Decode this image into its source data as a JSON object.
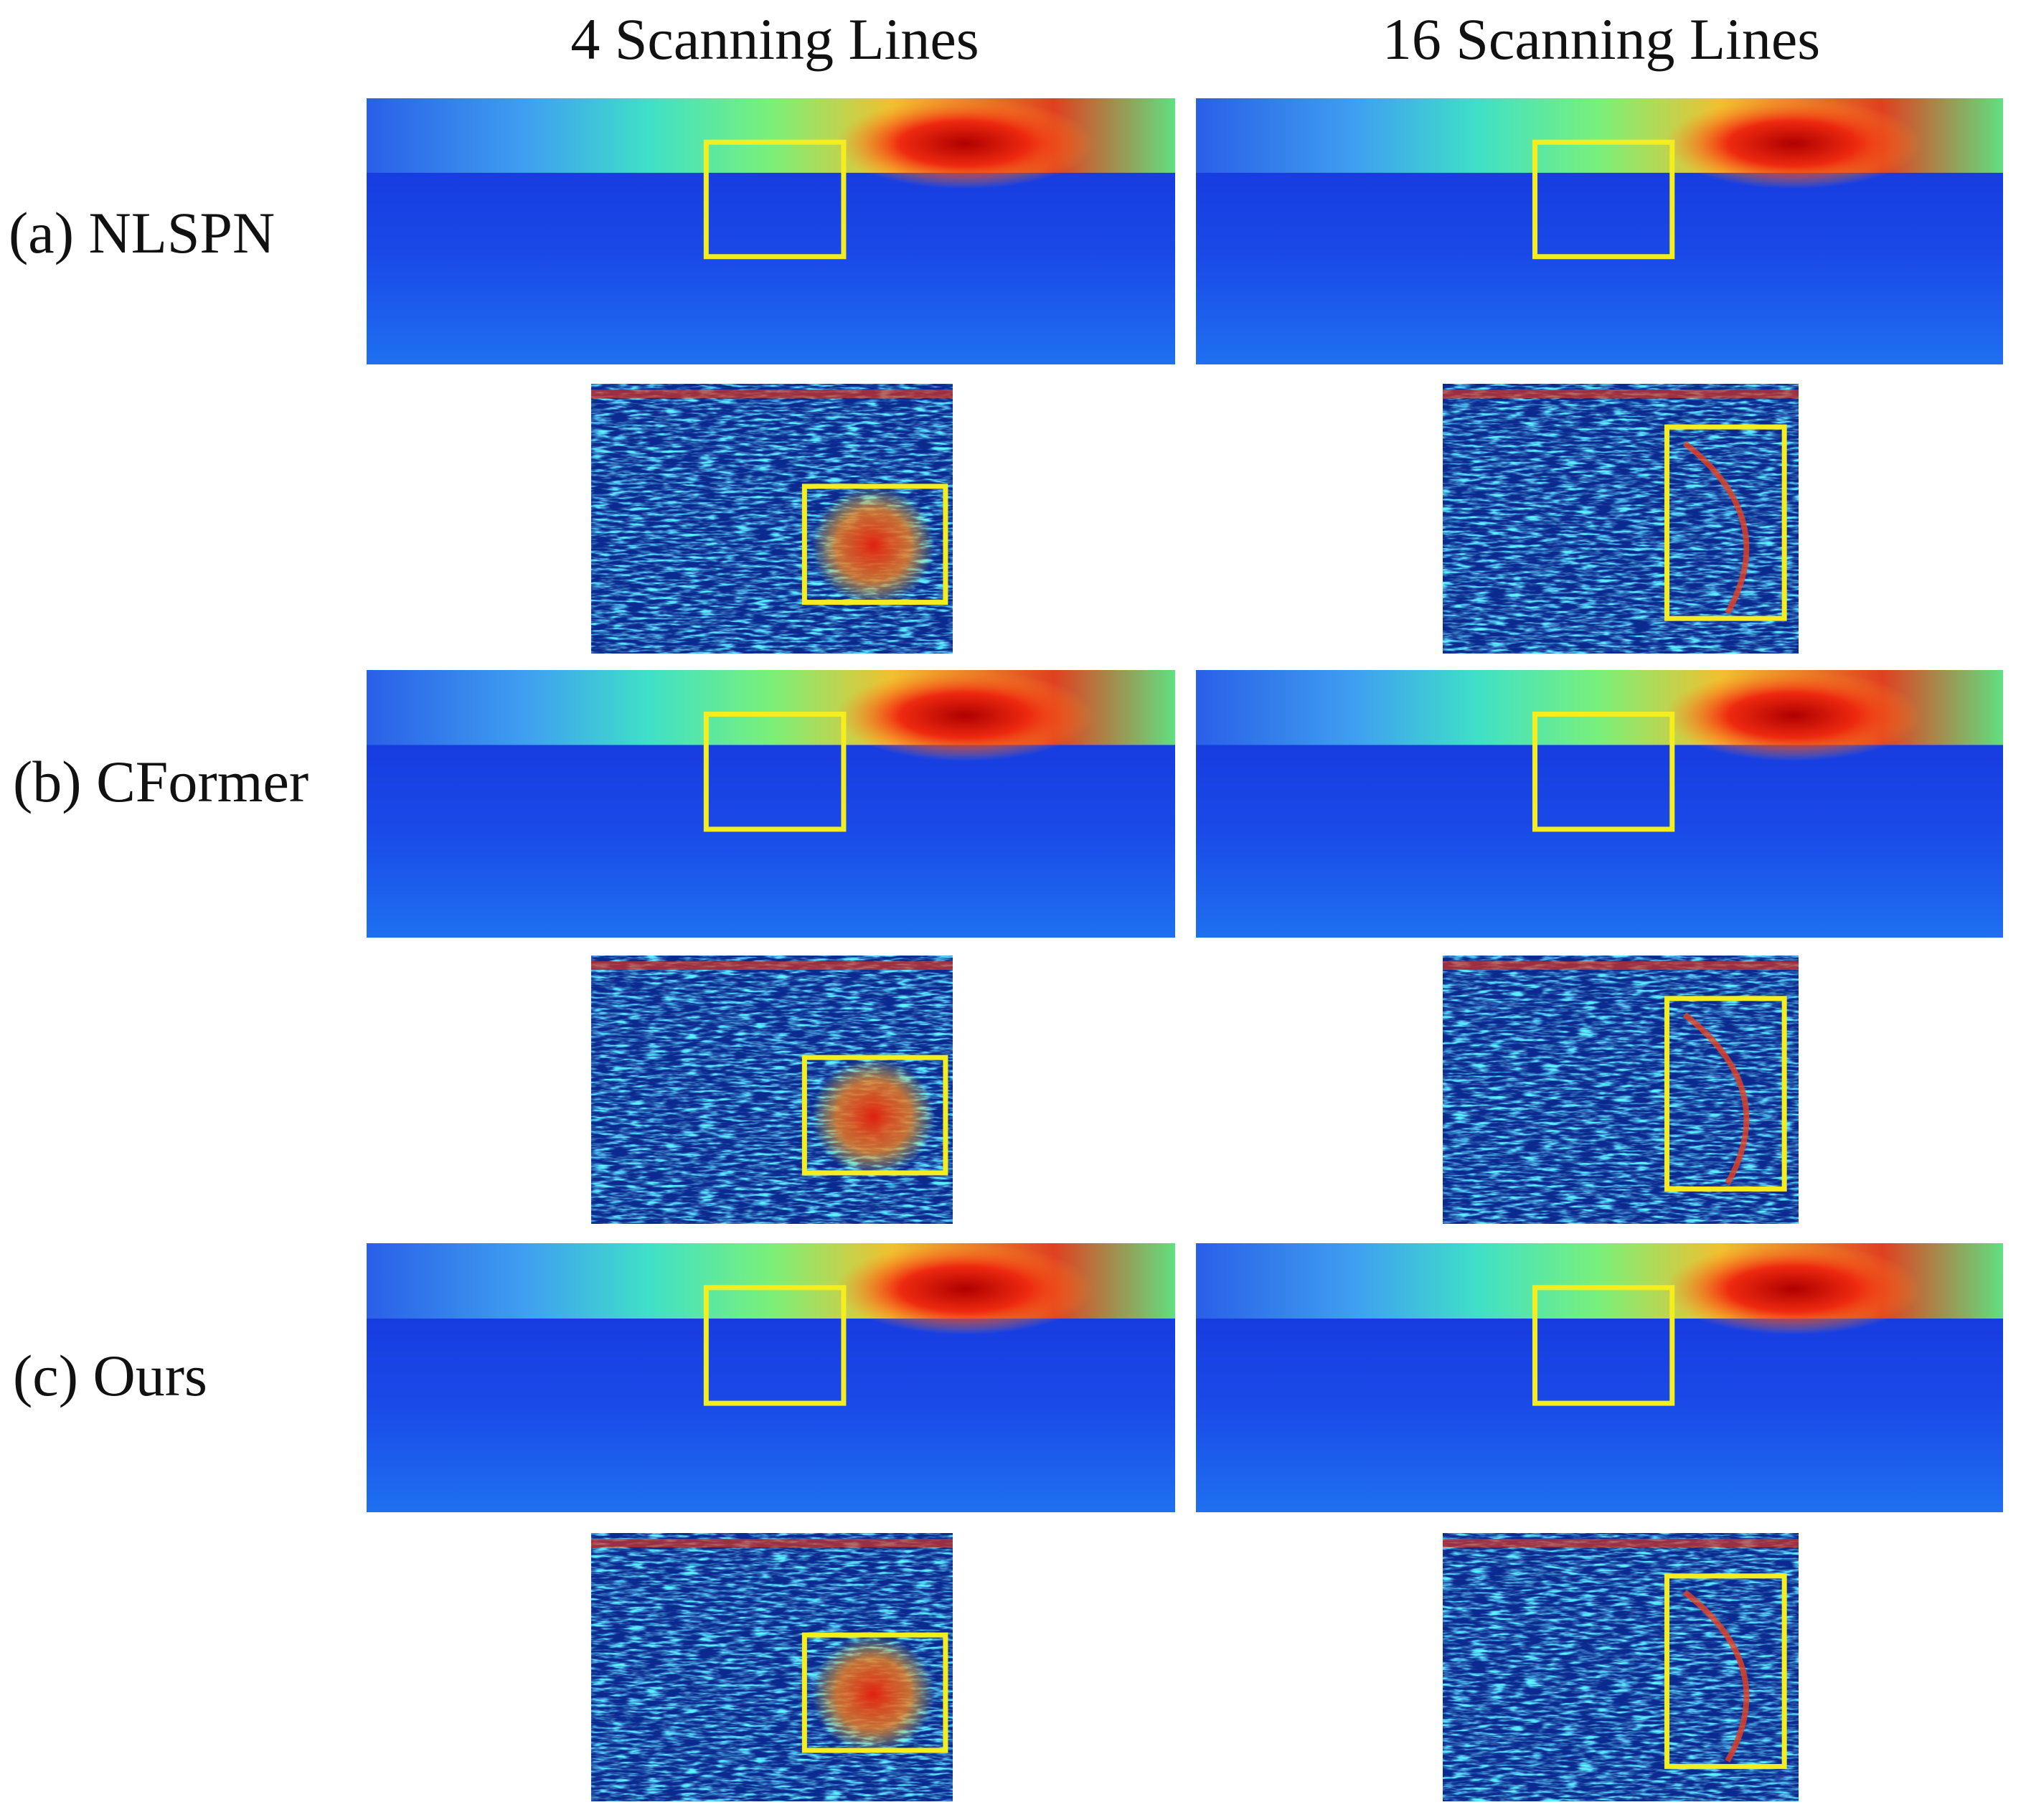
{
  "columns": [
    "4 Scanning Lines",
    "16 Scanning Lines"
  ],
  "rows": [
    "(a) NLSPN",
    "(b) CFormer",
    "(c) Ours"
  ]
}
